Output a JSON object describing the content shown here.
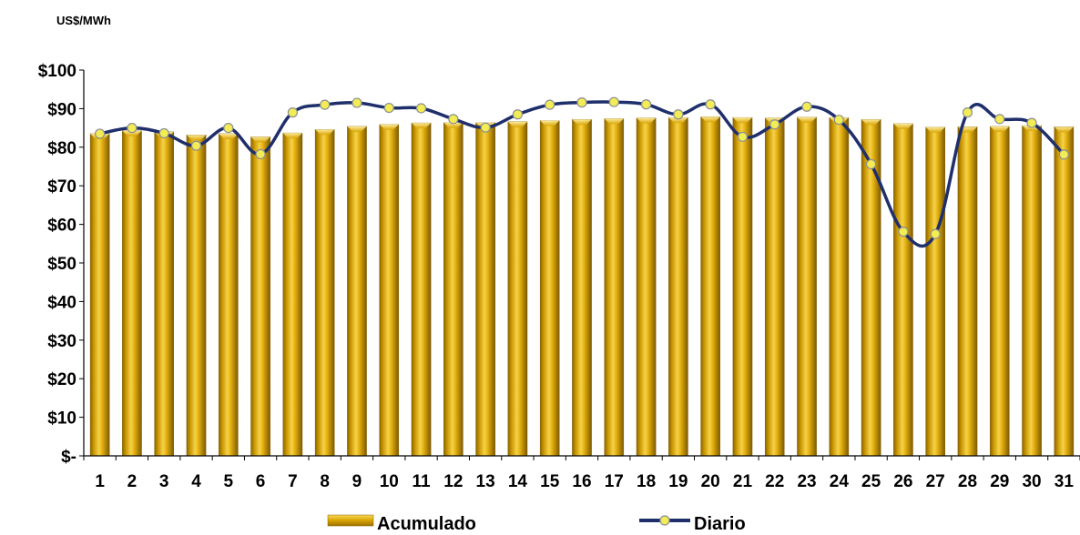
{
  "chart_data": {
    "type": "bar",
    "ylabel": "US$/MWh",
    "ylim": [
      0,
      100
    ],
    "yticks": [
      {
        "value": 0,
        "label": "$-"
      },
      {
        "value": 10,
        "label": "$10"
      },
      {
        "value": 20,
        "label": "$20"
      },
      {
        "value": 30,
        "label": "$30"
      },
      {
        "value": 40,
        "label": "$40"
      },
      {
        "value": 50,
        "label": "$50"
      },
      {
        "value": 60,
        "label": "$60"
      },
      {
        "value": 70,
        "label": "$70"
      },
      {
        "value": 80,
        "label": "$80"
      },
      {
        "value": 90,
        "label": "$90"
      },
      {
        "value": 100,
        "label": "$100"
      }
    ],
    "categories": [
      "1",
      "2",
      "3",
      "4",
      "5",
      "6",
      "7",
      "8",
      "9",
      "10",
      "11",
      "12",
      "13",
      "14",
      "15",
      "16",
      "17",
      "18",
      "19",
      "20",
      "21",
      "22",
      "23",
      "24",
      "25",
      "26",
      "27",
      "28",
      "29",
      "30",
      "31"
    ],
    "grid": false,
    "legend_position": "bottom",
    "series": [
      {
        "name": "Acumulado",
        "type": "bar",
        "color": "#D9A400",
        "values": [
          83.5,
          84.3,
          84.0,
          83.2,
          83.5,
          82.7,
          83.7,
          84.6,
          85.4,
          85.9,
          86.3,
          86.4,
          86.4,
          86.6,
          86.9,
          87.2,
          87.4,
          87.6,
          87.7,
          87.9,
          87.7,
          87.6,
          87.8,
          87.7,
          87.2,
          86.1,
          85.2,
          85.3,
          85.4,
          85.6,
          85.3
        ]
      },
      {
        "name": "Diario",
        "type": "line",
        "color": "#1F2F6B",
        "marker_color": "#F2EC55",
        "values": [
          83.5,
          85.0,
          83.6,
          80.4,
          85.0,
          78.2,
          89.0,
          91.0,
          91.5,
          90.2,
          90.1,
          87.3,
          85.1,
          88.5,
          91.0,
          91.6,
          91.7,
          91.1,
          88.5,
          91.1,
          82.7,
          85.9,
          90.5,
          87.1,
          75.6,
          58.1,
          57.5,
          89.0,
          87.3,
          86.3,
          78.1
        ]
      }
    ]
  }
}
